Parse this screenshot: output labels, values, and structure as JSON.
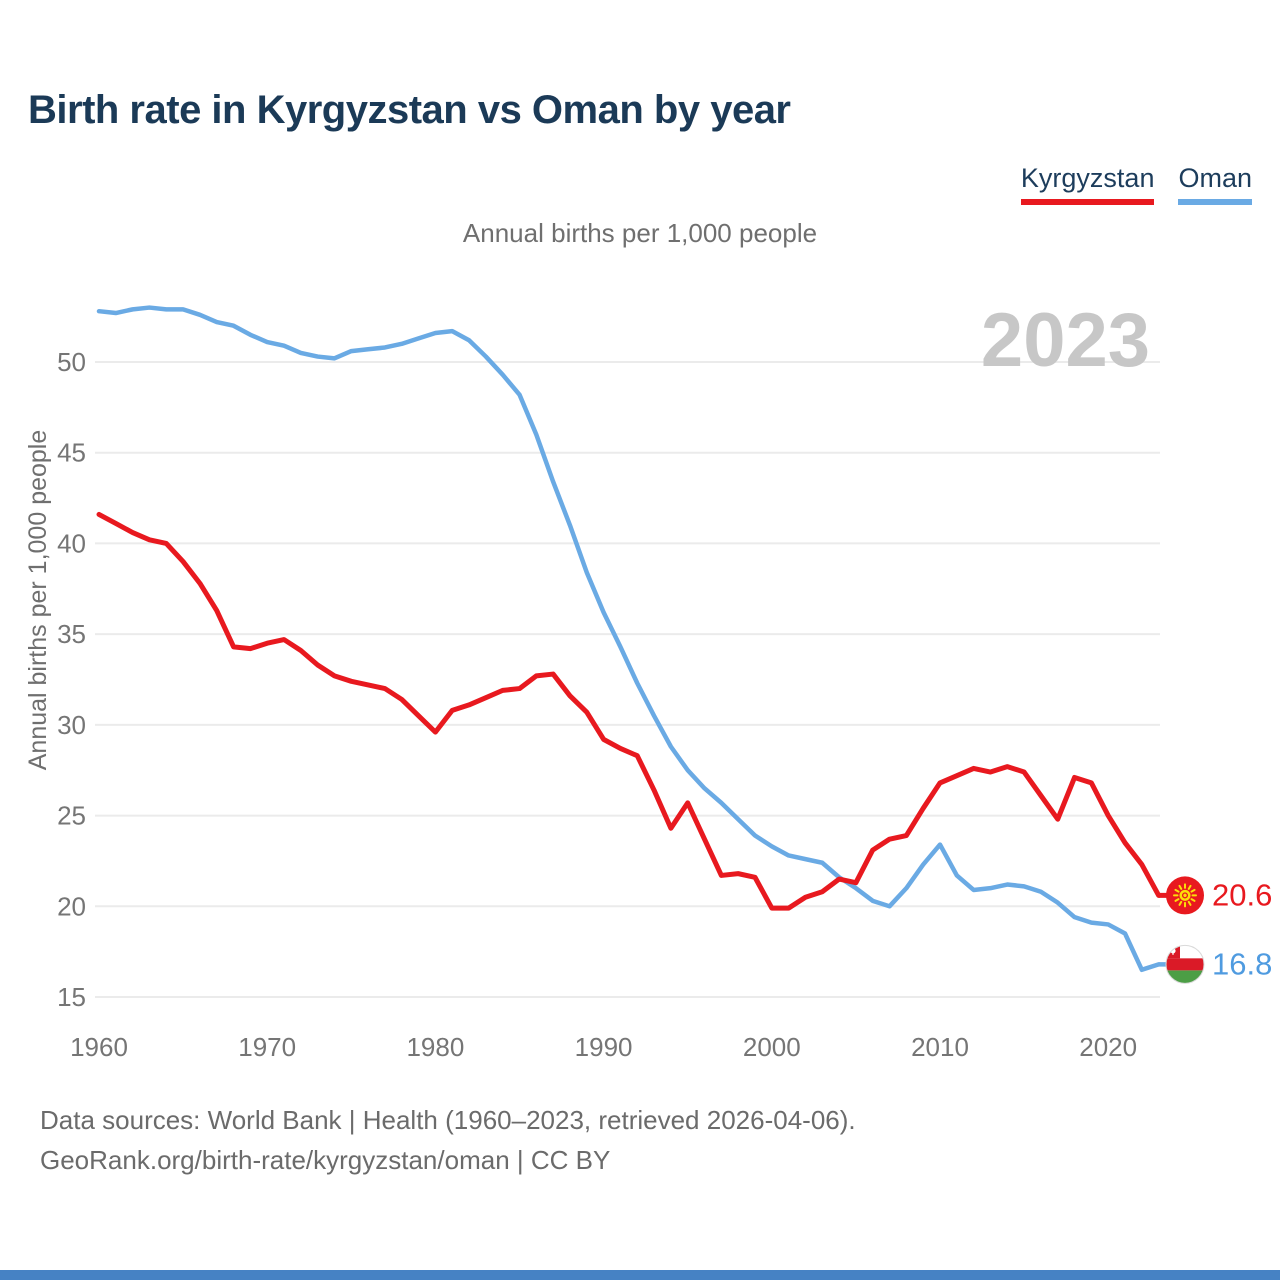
{
  "title": "Birth rate in Kyrgyzstan vs Oman by year",
  "subtitle": "Annual births per 1,000 people",
  "y_axis_label": "Annual births per 1,000 people",
  "watermark": "2023",
  "legend": [
    {
      "label": "Kyrgyzstan",
      "color": "#e8191f"
    },
    {
      "label": "Oman",
      "color": "#6aaae4"
    }
  ],
  "end_labels": [
    {
      "series": "Kyrgyzstan",
      "value": "20.6",
      "flag": "kyrgyzstan-flag"
    },
    {
      "series": "Oman",
      "value": "16.8",
      "flag": "oman-flag"
    }
  ],
  "footer_line1": "Data sources: World Bank | Health (1960–2023, retrieved 2026-04-06).",
  "footer_line2": "GeoRank.org/birth-rate/kyrgyzstan/oman | CC BY",
  "colors": {
    "kyrgyzstan_line": "#e8191f",
    "oman_line": "#6aaae4",
    "title_text": "#1b3a57",
    "axis_text": "#757575",
    "watermark_text": "#c7c7c7",
    "gridline": "#ebebeb",
    "bottom_bar": "#4682c4"
  },
  "chart_data": {
    "type": "line",
    "title": "Birth rate in Kyrgyzstan vs Oman by year",
    "subtitle": "Annual births per 1,000 people",
    "xlabel": "",
    "ylabel": "Annual births per 1,000 people",
    "grid": "horizontal",
    "legend_position": "top-right",
    "xlim": [
      1960,
      2023
    ],
    "ylim": [
      13,
      55
    ],
    "xticks": [
      1960,
      1970,
      1980,
      1990,
      2000,
      2010,
      2020
    ],
    "yticks": [
      15,
      20,
      25,
      30,
      35,
      40,
      45,
      50
    ],
    "x": [
      1960,
      1961,
      1962,
      1963,
      1964,
      1965,
      1966,
      1967,
      1968,
      1969,
      1970,
      1971,
      1972,
      1973,
      1974,
      1975,
      1976,
      1977,
      1978,
      1979,
      1980,
      1981,
      1982,
      1983,
      1984,
      1985,
      1986,
      1987,
      1988,
      1989,
      1990,
      1991,
      1992,
      1993,
      1994,
      1995,
      1996,
      1997,
      1998,
      1999,
      2000,
      2001,
      2002,
      2003,
      2004,
      2005,
      2006,
      2007,
      2008,
      2009,
      2010,
      2011,
      2012,
      2013,
      2014,
      2015,
      2016,
      2017,
      2018,
      2019,
      2020,
      2021,
      2022,
      2023
    ],
    "series": [
      {
        "name": "Kyrgyzstan",
        "color": "#e8191f",
        "last_value": 20.6,
        "values": [
          41.6,
          41.1,
          40.6,
          40.2,
          40.0,
          39.0,
          37.8,
          36.3,
          34.3,
          34.2,
          34.5,
          34.7,
          34.1,
          33.3,
          32.7,
          32.4,
          32.2,
          32.0,
          31.4,
          30.5,
          29.6,
          30.8,
          31.1,
          31.5,
          31.9,
          32.0,
          32.7,
          32.8,
          31.6,
          30.7,
          29.2,
          28.7,
          28.3,
          26.4,
          24.3,
          25.7,
          23.7,
          21.7,
          21.8,
          21.6,
          19.9,
          19.9,
          20.5,
          20.8,
          21.5,
          21.3,
          23.1,
          23.7,
          23.9,
          25.4,
          26.8,
          27.2,
          27.6,
          27.4,
          27.7,
          27.4,
          26.1,
          24.8,
          27.1,
          26.8,
          25.0,
          23.5,
          22.3,
          20.6
        ]
      },
      {
        "name": "Oman",
        "color": "#6aaae4",
        "last_value": 16.8,
        "values": [
          52.8,
          52.7,
          52.9,
          53.0,
          52.9,
          52.9,
          52.6,
          52.2,
          52.0,
          51.5,
          51.1,
          50.9,
          50.5,
          50.3,
          50.2,
          50.6,
          50.7,
          50.8,
          51.0,
          51.3,
          51.6,
          51.7,
          51.2,
          50.3,
          49.3,
          48.2,
          46.0,
          43.4,
          41.0,
          38.4,
          36.2,
          34.3,
          32.3,
          30.5,
          28.8,
          27.5,
          26.5,
          25.7,
          24.8,
          23.9,
          23.3,
          22.8,
          22.6,
          22.4,
          21.6,
          21.0,
          20.3,
          20.0,
          21.0,
          22.3,
          23.4,
          21.7,
          20.9,
          21.0,
          21.2,
          21.1,
          20.8,
          20.2,
          19.4,
          19.1,
          19.0,
          18.5,
          16.5,
          16.8
        ]
      }
    ]
  }
}
